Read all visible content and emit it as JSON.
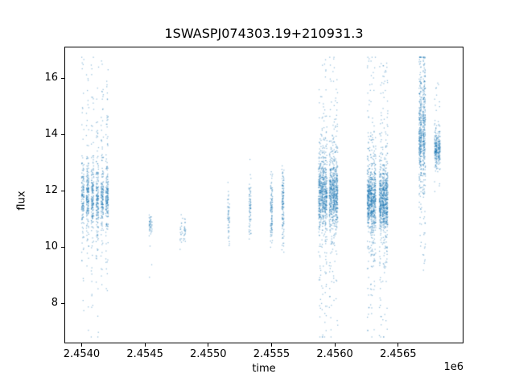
{
  "chart_data": {
    "type": "scatter",
    "title": "1SWASPJ074303.19+210931.3",
    "xlabel": "time",
    "ylabel": "flux",
    "x_offset_text": "1e6",
    "xlim": [
      2453870,
      2457010
    ],
    "ylim": [
      6.6,
      17.1
    ],
    "grid": false,
    "legend": "none",
    "marker": {
      "color": "#1f77b4",
      "alpha": 0.45,
      "size": 1.3
    },
    "x_ticks": [
      {
        "label": "2.4540",
        "value": 2454000
      },
      {
        "label": "2.4545",
        "value": 2454500
      },
      {
        "label": "2.4550",
        "value": 2455000
      },
      {
        "label": "2.4555",
        "value": 2455500
      },
      {
        "label": "2.4560",
        "value": 2456000
      },
      {
        "label": "2.4565",
        "value": 2456500
      }
    ],
    "y_ticks": [
      {
        "label": "8",
        "value": 8
      },
      {
        "label": "10",
        "value": 10
      },
      {
        "label": "12",
        "value": 12
      },
      {
        "label": "14",
        "value": 14
      },
      {
        "label": "16",
        "value": 16
      }
    ],
    "clusters": [
      {
        "t_center": 2454105,
        "t_halfwidth": 115,
        "nights": 6,
        "night_jitter": 10,
        "n": 1100,
        "flux_components": [
          {
            "w": 0.55,
            "type": "normal",
            "mu": 11.75,
            "sigma": 0.45
          },
          {
            "w": 0.3,
            "type": "normal",
            "mu": 11.8,
            "sigma": 1.3
          },
          {
            "w": 0.1,
            "type": "normal",
            "mu": 12.2,
            "sigma": 2.4
          },
          {
            "w": 0.05,
            "type": "uniform",
            "min": 7.6,
            "max": 16.7
          }
        ]
      },
      {
        "t_center": 2454545,
        "t_halfwidth": 20,
        "nights": 1,
        "night_jitter": 12,
        "n": 45,
        "flux_components": [
          {
            "w": 0.8,
            "type": "normal",
            "mu": 10.8,
            "sigma": 0.18
          },
          {
            "w": 0.2,
            "type": "uniform",
            "min": 8.7,
            "max": 11.15
          }
        ]
      },
      {
        "t_center": 2454800,
        "t_halfwidth": 25,
        "nights": 2,
        "night_jitter": 10,
        "n": 40,
        "flux_components": [
          {
            "w": 0.85,
            "type": "normal",
            "mu": 10.65,
            "sigma": 0.22
          },
          {
            "w": 0.15,
            "type": "uniform",
            "min": 9.9,
            "max": 11.2
          }
        ]
      },
      {
        "t_center": 2455160,
        "t_halfwidth": 8,
        "nights": 1,
        "night_jitter": 8,
        "n": 50,
        "flux_components": [
          {
            "w": 0.8,
            "type": "normal",
            "mu": 11.15,
            "sigma": 0.45
          },
          {
            "w": 0.2,
            "type": "uniform",
            "min": 10.1,
            "max": 12.2
          }
        ]
      },
      {
        "t_center": 2455330,
        "t_halfwidth": 8,
        "nights": 1,
        "night_jitter": 8,
        "n": 70,
        "flux_components": [
          {
            "w": 0.8,
            "type": "normal",
            "mu": 11.5,
            "sigma": 0.5
          },
          {
            "w": 0.2,
            "type": "uniform",
            "min": 10.35,
            "max": 12.45
          }
        ]
      },
      {
        "t_center": 2455500,
        "t_halfwidth": 8,
        "nights": 1,
        "night_jitter": 8,
        "n": 110,
        "flux_components": [
          {
            "w": 0.75,
            "type": "normal",
            "mu": 11.4,
            "sigma": 0.55
          },
          {
            "w": 0.25,
            "type": "uniform",
            "min": 9.9,
            "max": 12.6
          }
        ]
      },
      {
        "t_center": 2455590,
        "t_halfwidth": 8,
        "nights": 1,
        "night_jitter": 8,
        "n": 130,
        "flux_components": [
          {
            "w": 0.75,
            "type": "normal",
            "mu": 11.55,
            "sigma": 0.55
          },
          {
            "w": 0.25,
            "type": "uniform",
            "min": 9.8,
            "max": 12.7
          }
        ]
      },
      {
        "t_center": 2455905,
        "t_halfwidth": 35,
        "nights": 3,
        "night_jitter": 10,
        "n": 700,
        "flux_components": [
          {
            "w": 0.5,
            "type": "normal",
            "mu": 11.8,
            "sigma": 0.5
          },
          {
            "w": 0.28,
            "type": "normal",
            "mu": 12.3,
            "sigma": 0.9
          },
          {
            "w": 0.17,
            "type": "normal",
            "mu": 11.8,
            "sigma": 2.2
          },
          {
            "w": 0.05,
            "type": "uniform",
            "min": 7.0,
            "max": 16.5
          }
        ]
      },
      {
        "t_center": 2455990,
        "t_halfwidth": 35,
        "nights": 3,
        "night_jitter": 10,
        "n": 700,
        "flux_components": [
          {
            "w": 0.5,
            "type": "normal",
            "mu": 11.8,
            "sigma": 0.5
          },
          {
            "w": 0.28,
            "type": "normal",
            "mu": 12.3,
            "sigma": 0.9
          },
          {
            "w": 0.17,
            "type": "normal",
            "mu": 11.8,
            "sigma": 2.2
          },
          {
            "w": 0.05,
            "type": "uniform",
            "min": 7.0,
            "max": 16.5
          }
        ]
      },
      {
        "t_center": 2456290,
        "t_halfwidth": 35,
        "nights": 3,
        "night_jitter": 10,
        "n": 800,
        "flux_components": [
          {
            "w": 0.55,
            "type": "normal",
            "mu": 11.65,
            "sigma": 0.5
          },
          {
            "w": 0.25,
            "type": "normal",
            "mu": 11.9,
            "sigma": 1.0
          },
          {
            "w": 0.15,
            "type": "normal",
            "mu": 11.8,
            "sigma": 2.3
          },
          {
            "w": 0.05,
            "type": "uniform",
            "min": 7.0,
            "max": 16.6
          }
        ]
      },
      {
        "t_center": 2456385,
        "t_halfwidth": 35,
        "nights": 3,
        "night_jitter": 10,
        "n": 800,
        "flux_components": [
          {
            "w": 0.55,
            "type": "normal",
            "mu": 11.65,
            "sigma": 0.5
          },
          {
            "w": 0.25,
            "type": "normal",
            "mu": 11.9,
            "sigma": 1.0
          },
          {
            "w": 0.15,
            "type": "normal",
            "mu": 11.8,
            "sigma": 2.3
          },
          {
            "w": 0.05,
            "type": "uniform",
            "min": 7.0,
            "max": 16.6
          }
        ]
      },
      {
        "t_center": 2456690,
        "t_halfwidth": 30,
        "nights": 2,
        "night_jitter": 10,
        "n": 600,
        "flux_components": [
          {
            "w": 0.45,
            "type": "normal",
            "mu": 15.0,
            "sigma": 1.0
          },
          {
            "w": 0.35,
            "type": "normal",
            "mu": 13.6,
            "sigma": 0.5
          },
          {
            "w": 0.15,
            "type": "normal",
            "mu": 12.5,
            "sigma": 1.5
          },
          {
            "w": 0.05,
            "type": "uniform",
            "min": 9.4,
            "max": 16.7
          }
        ]
      },
      {
        "t_center": 2456810,
        "t_halfwidth": 25,
        "nights": 2,
        "night_jitter": 10,
        "n": 280,
        "flux_components": [
          {
            "w": 0.8,
            "type": "normal",
            "mu": 13.5,
            "sigma": 0.3
          },
          {
            "w": 0.15,
            "type": "normal",
            "mu": 13.6,
            "sigma": 0.7
          },
          {
            "w": 0.05,
            "type": "uniform",
            "min": 12.2,
            "max": 15.9
          }
        ]
      }
    ]
  }
}
